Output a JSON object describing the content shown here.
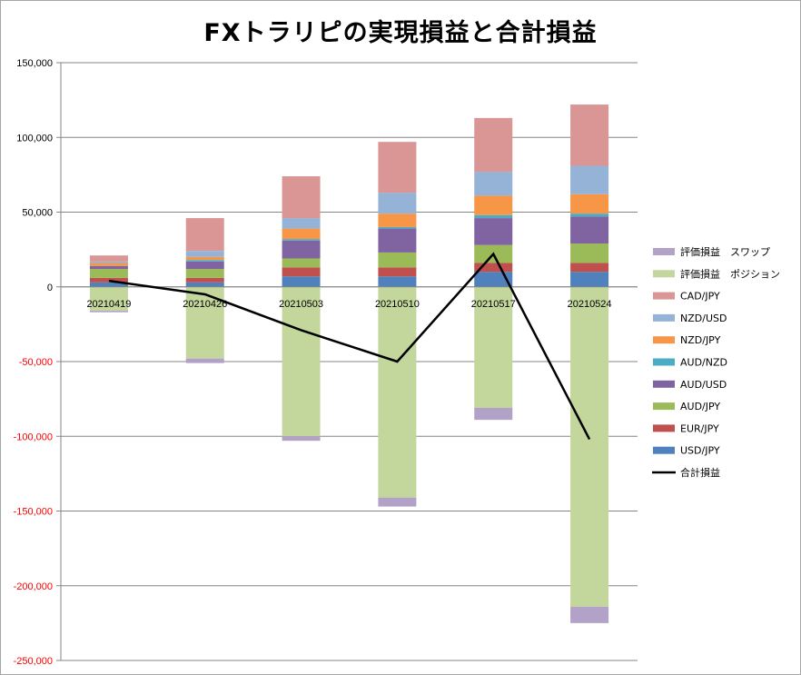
{
  "chart_data": {
    "type": "bar",
    "stacked": true,
    "title": "FXトラリピの実現損益と合計損益",
    "categories": [
      "20210419",
      "20210426",
      "20210503",
      "20210510",
      "20210517",
      "20210524"
    ],
    "ylim": [
      -250000,
      150000
    ],
    "yticks": [
      150000,
      100000,
      50000,
      0,
      -50000,
      -100000,
      -150000,
      -200000,
      -250000
    ],
    "ytick_labels": [
      "150,000",
      "100,000",
      "50,000",
      "0",
      "-50,000",
      "-100,000",
      "-150,000",
      "-200,000",
      "-250,000"
    ],
    "grid": true,
    "legend_position": "right",
    "series": [
      {
        "name": "USD/JPY",
        "color": "#4f81bd",
        "values": [
          3000,
          3000,
          7000,
          7000,
          10000,
          10000
        ]
      },
      {
        "name": "EUR/JPY",
        "color": "#c0504d",
        "values": [
          3000,
          3000,
          6000,
          6000,
          6000,
          6000
        ]
      },
      {
        "name": "AUD/JPY",
        "color": "#9bbb59",
        "values": [
          6000,
          6000,
          6000,
          10000,
          12000,
          13000
        ]
      },
      {
        "name": "AUD/USD",
        "color": "#8064a2",
        "values": [
          2000,
          5000,
          12000,
          16000,
          18000,
          18000
        ]
      },
      {
        "name": "AUD/NZD",
        "color": "#4bacc6",
        "values": [
          0,
          1000,
          1000,
          1000,
          2000,
          2000
        ]
      },
      {
        "name": "NZD/JPY",
        "color": "#f79646",
        "values": [
          2000,
          2000,
          7000,
          9000,
          13000,
          13000
        ]
      },
      {
        "name": "NZD/USD",
        "color": "#95b3d7",
        "values": [
          1000,
          4000,
          7000,
          14000,
          16000,
          19000
        ]
      },
      {
        "name": "CAD/JPY",
        "color": "#d99694",
        "values": [
          4000,
          22000,
          28000,
          34000,
          36000,
          41000
        ]
      },
      {
        "name": "評価損益　ポジション",
        "color": "#c3d69b",
        "values": [
          -16000,
          -48000,
          -100000,
          -141000,
          -81000,
          -214000
        ]
      },
      {
        "name": "評価損益　スワップ",
        "color": "#b3a2c7",
        "values": [
          -1000,
          -3000,
          -3000,
          -6000,
          -8000,
          -11000
        ]
      }
    ],
    "line_series": {
      "name": "合計損益",
      "color": "#000000",
      "values": [
        4000,
        -5000,
        -29000,
        -50000,
        22000,
        -102000
      ]
    },
    "legend_order": [
      "評価損益　スワップ",
      "評価損益　ポジション",
      "CAD/JPY",
      "NZD/USD",
      "NZD/JPY",
      "AUD/NZD",
      "AUD/USD",
      "AUD/JPY",
      "EUR/JPY",
      "USD/JPY",
      "合計損益"
    ],
    "colors": {
      "positive_tick": "#000000",
      "negative_tick": "#ff0000",
      "grid": "#868686"
    }
  }
}
